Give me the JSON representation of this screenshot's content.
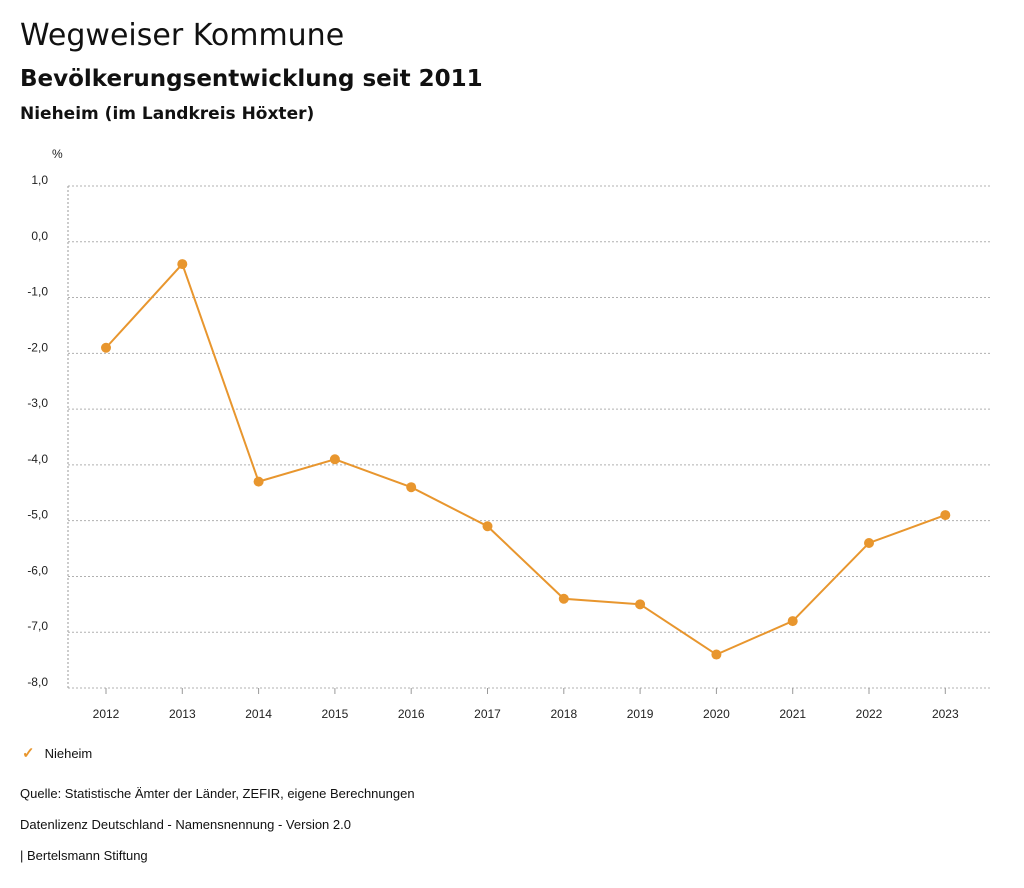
{
  "header": {
    "title": "Wegweiser Kommune",
    "subtitle": "Bevölkerungsentwicklung seit 2011",
    "place": "Nieheim (im Landkreis Höxter)"
  },
  "chart_data": {
    "type": "line",
    "ylabel": "%",
    "ylim": [
      -8.0,
      1.0
    ],
    "yticks": [
      "1,0",
      "0,0",
      "-1,0",
      "-2,0",
      "-3,0",
      "-4,0",
      "-5,0",
      "-6,0",
      "-7,0",
      "-8,0"
    ],
    "categories": [
      "2012",
      "2013",
      "2014",
      "2015",
      "2016",
      "2017",
      "2018",
      "2019",
      "2020",
      "2021",
      "2022",
      "2023"
    ],
    "series": [
      {
        "name": "Nieheim",
        "color": "#E8962E",
        "values": [
          -1.9,
          -0.4,
          -4.3,
          -3.9,
          -4.4,
          -5.1,
          -6.4,
          -6.5,
          -7.4,
          -6.8,
          -5.4,
          -4.9
        ]
      }
    ],
    "grid": true,
    "legend": "bottom-left"
  },
  "legend": {
    "label": "Nieheim",
    "icon": "check-icon"
  },
  "footer": {
    "source": "Quelle: Statistische Ämter der Länder, ZEFIR, eigene Berechnungen",
    "license": "Datenlizenz Deutschland - Namensnennung - Version 2.0",
    "publisher": "| Bertelsmann Stiftung"
  }
}
